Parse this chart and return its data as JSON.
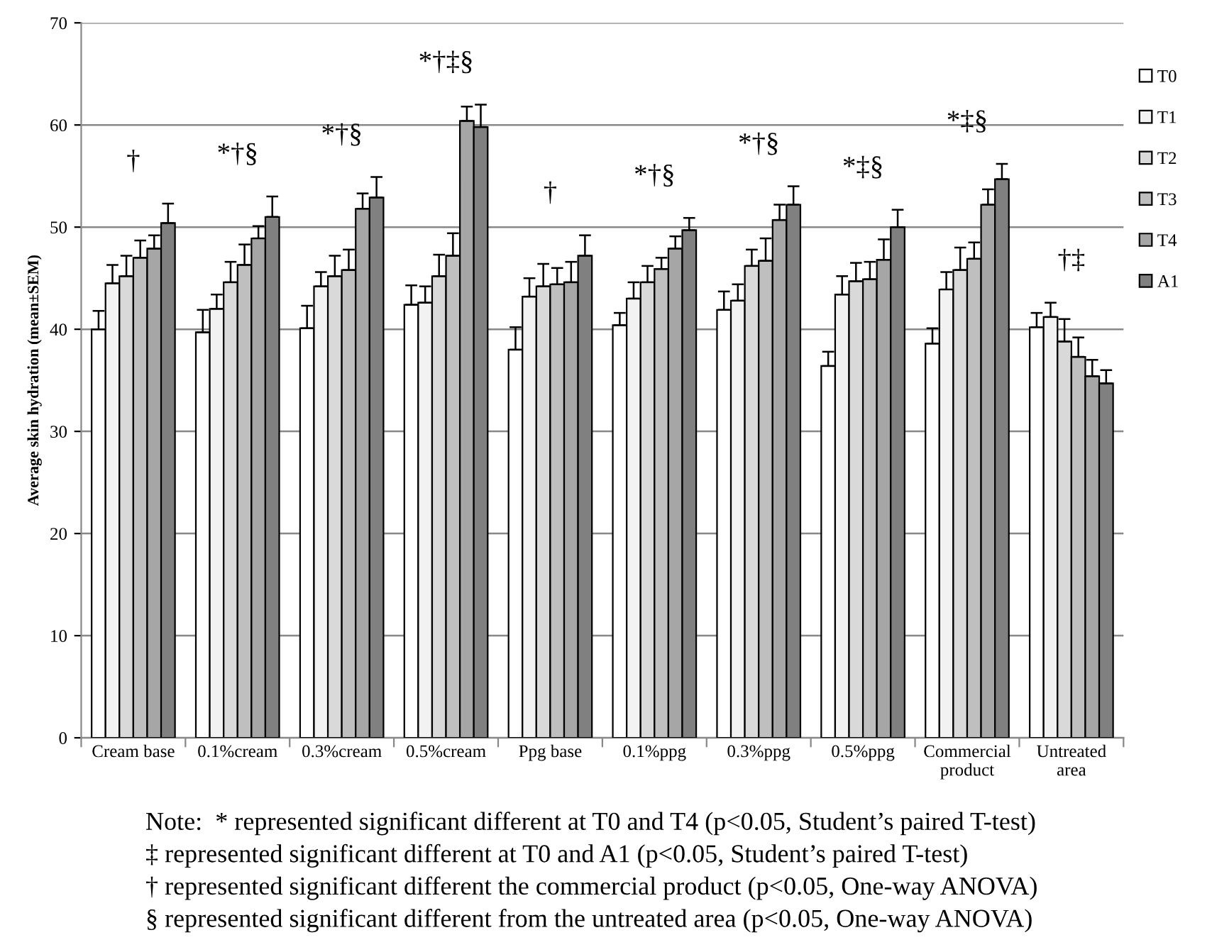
{
  "chart_data": {
    "type": "bar",
    "ylabel": "Average skin hydration (mean±SEM)",
    "categories": [
      "Cream base",
      "0.1%cream",
      "0.3%cream",
      "0.5%cream",
      "Ppg base",
      "0.1%ppg",
      "0.3%ppg",
      "0.5%ppg",
      "Commercial\nproduct",
      "Untreated\narea"
    ],
    "series": [
      {
        "name": "T0",
        "color": "#ffffff",
        "values": [
          40,
          39.7,
          40.1,
          42.4,
          38,
          40.4,
          41.9,
          36.4,
          38.6,
          40.2
        ],
        "errors": [
          1.8,
          2.2,
          2.2,
          1.9,
          2.2,
          1.2,
          1.8,
          1.4,
          1.5,
          1.4
        ]
      },
      {
        "name": "T1",
        "color": "#f2f2f2",
        "values": [
          44.5,
          42,
          44.2,
          42.6,
          43.2,
          43,
          42.8,
          43.4,
          43.9,
          41.2
        ],
        "errors": [
          1.8,
          1.4,
          1.4,
          1.6,
          1.8,
          1.6,
          1.6,
          1.8,
          1.7,
          1.4
        ]
      },
      {
        "name": "T2",
        "color": "#d9d9d9",
        "values": [
          45.2,
          44.6,
          45.2,
          45.2,
          44.2,
          44.6,
          46.2,
          44.7,
          45.8,
          38.8
        ],
        "errors": [
          2,
          2,
          2,
          2.1,
          2.2,
          1.6,
          1.6,
          1.8,
          2.2,
          2.2
        ]
      },
      {
        "name": "T3",
        "color": "#bfbfbf",
        "values": [
          47,
          46.3,
          45.8,
          47.2,
          44.4,
          45.9,
          46.7,
          44.9,
          46.9,
          37.3
        ],
        "errors": [
          1.7,
          2,
          2,
          2.2,
          1.6,
          1.1,
          2.2,
          1.7,
          1.6,
          1.9
        ]
      },
      {
        "name": "T4",
        "color": "#a6a6a6",
        "values": [
          47.9,
          48.9,
          51.8,
          60.4,
          44.6,
          47.9,
          50.7,
          46.8,
          52.2,
          35.4
        ],
        "errors": [
          1.3,
          1.2,
          1.5,
          1.4,
          2,
          1.2,
          1.5,
          2,
          1.5,
          1.6
        ]
      },
      {
        "name": "A1",
        "color": "#808080",
        "values": [
          50.4,
          51,
          52.9,
          59.8,
          47.2,
          49.7,
          52.2,
          50,
          54.7,
          34.7
        ],
        "errors": [
          1.9,
          2,
          2,
          2.2,
          2,
          1.2,
          1.8,
          1.7,
          1.5,
          1.3
        ]
      }
    ],
    "ylim": [
      0,
      70
    ],
    "yticks": [
      0,
      10,
      20,
      30,
      40,
      50,
      60,
      70
    ],
    "grid": "y",
    "legend": "right",
    "annotations": [
      "†",
      "*†§",
      "*†§",
      "*†‡§",
      "†",
      "*†§",
      "*†§",
      "*‡§",
      "*‡§",
      "†‡",
      "Note:  * represented significant different at T0 and T4 (p<0.05, Student’s paired T-test)",
      "‡ represented significant different at T0 and A1 (p<0.05, Student’s paired T-test)",
      "† represented significant different the commercial product (p<0.05, One-way ANOVA)",
      "§ represented significant different from the untreated area (p<0.05, One-way ANOVA)"
    ]
  }
}
